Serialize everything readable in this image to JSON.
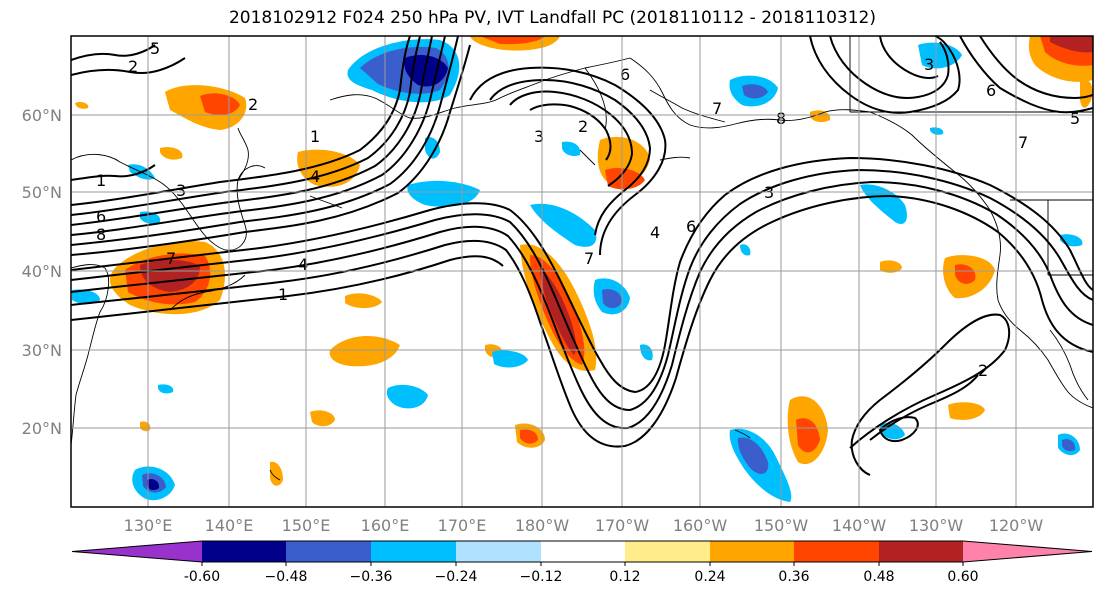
{
  "title": "2018102912 F024 250 hPa PV, IVT Landfall PC (2018110112 - 2018110312)",
  "lat_labels": [
    "60°N",
    "50°N",
    "40°N",
    "30°N",
    "20°N"
  ],
  "lon_labels": [
    "130°E",
    "140°E",
    "150°E",
    "160°E",
    "170°E",
    "180°W",
    "170°W",
    "160°W",
    "150°W",
    "140°W",
    "130°W",
    "120°W"
  ],
  "colorbar": {
    "colors": [
      "#9932cc",
      "#00008b",
      "#3a5fcd",
      "#00bfff",
      "#b0e2ff",
      "#ffffff",
      "#ffec8b",
      "#ffa500",
      "#ff4500",
      "#b22222",
      "#ff82ab"
    ],
    "tick_labels": [
      "-0.60",
      "−0.48",
      "−0.36",
      "−0.24",
      "−0.12",
      "0.12",
      "0.24",
      "0.36",
      "0.48",
      "0.60"
    ]
  },
  "contour_labels": [
    "1",
    "2",
    "3",
    "4",
    "5",
    "6",
    "7",
    "8",
    "1",
    "2",
    "3",
    "4",
    "6",
    "7",
    "1",
    "3",
    "6",
    "7",
    "2",
    "2",
    "3",
    "4",
    "5",
    "6",
    "7",
    "8"
  ]
}
